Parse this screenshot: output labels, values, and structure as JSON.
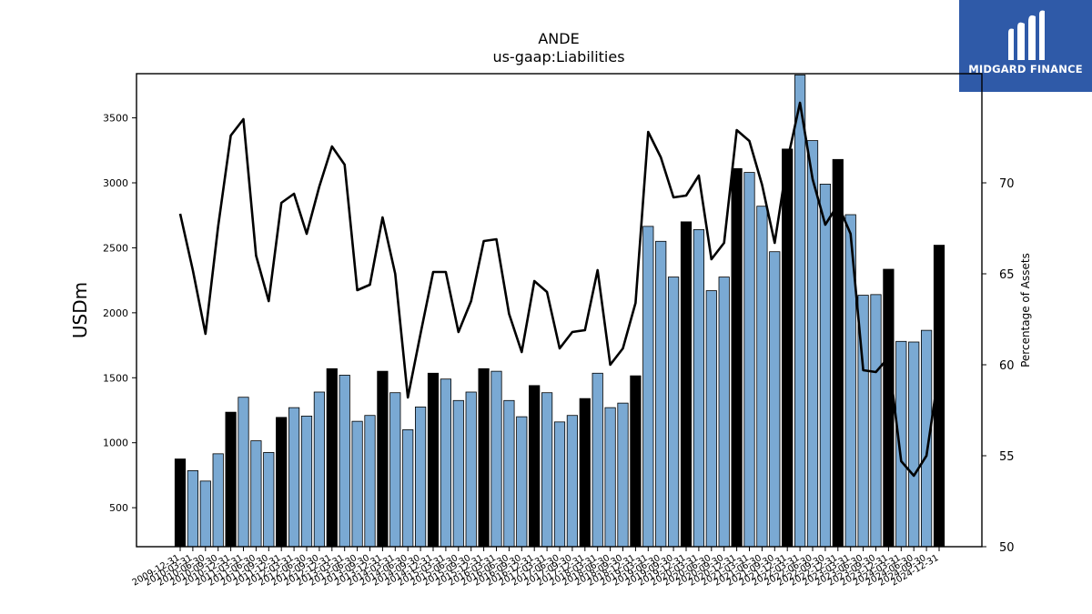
{
  "logo": {
    "text": "MIDGARD FINANCE"
  },
  "chart_data": {
    "type": "bar",
    "title": "ANDE",
    "subtitle": "us-gaap:Liabilities",
    "ylabel": "USDm",
    "y2label": "Percentage of Assets",
    "ylim": [
      200,
      3840
    ],
    "y2lim": [
      50,
      76
    ],
    "yticks": [
      500,
      1000,
      1500,
      2000,
      2500,
      3000,
      3500
    ],
    "y2ticks": [
      50,
      55,
      60,
      65,
      70
    ],
    "grid": false,
    "categories": [
      "2009-12-31",
      "2010-03-31",
      "2010-06-30",
      "2010-09-30",
      "2010-12-31",
      "2011-03-31",
      "2011-06-30",
      "2011-09-30",
      "2011-12-31",
      "2012-03-31",
      "2012-06-30",
      "2012-09-30",
      "2012-12-31",
      "2013-03-31",
      "2013-06-30",
      "2013-09-30",
      "2013-12-31",
      "2014-03-31",
      "2014-06-30",
      "2014-09-30",
      "2014-12-31",
      "2015-03-31",
      "2015-06-30",
      "2015-09-30",
      "2015-12-31",
      "2016-03-31",
      "2016-06-30",
      "2016-09-30",
      "2016-12-31",
      "2017-03-31",
      "2017-06-30",
      "2017-09-30",
      "2017-12-31",
      "2018-03-31",
      "2018-06-30",
      "2018-09-30",
      "2018-12-31",
      "2019-03-31",
      "2019-06-30",
      "2019-09-30",
      "2019-12-31",
      "2020-03-31",
      "2020-06-30",
      "2020-09-30",
      "2020-12-31",
      "2021-03-31",
      "2021-06-30",
      "2021-09-30",
      "2021-12-31",
      "2022-03-31",
      "2022-06-30",
      "2022-09-30",
      "2022-12-31",
      "2023-03-31",
      "2023-06-30",
      "2023-09-30",
      "2023-12-31",
      "2024-03-31",
      "2024-06-30",
      "2024-09-30",
      "2024-12-31"
    ],
    "series": [
      {
        "kind": "bar",
        "values": [
          875,
          785,
          705,
          915,
          1235,
          1350,
          1015,
          925,
          1195,
          1270,
          1205,
          1390,
          1570,
          1520,
          1165,
          1210,
          1550,
          1385,
          1100,
          1275,
          1535,
          1490,
          1325,
          1390,
          1570,
          1550,
          1325,
          1200,
          1440,
          1385,
          1160,
          1210,
          1340,
          1535,
          1270,
          1305,
          1515,
          2665,
          2550,
          2275,
          2700,
          2640,
          2170,
          2275,
          3110,
          3080,
          2820,
          2470,
          3260,
          3830,
          3325,
          2990,
          3180,
          2755,
          2135,
          2140,
          2335,
          1780,
          1775,
          1865,
          2520
        ],
        "year_end_color": "#000000",
        "quarter_color": "#7aa9d3"
      },
      {
        "kind": "line",
        "axis": "right",
        "color": "#000000",
        "values": [
          68.3,
          65.2,
          61.7,
          67.6,
          72.6,
          73.5,
          66.0,
          63.5,
          68.9,
          69.4,
          67.2,
          69.8,
          72.0,
          71.0,
          64.1,
          64.4,
          68.1,
          65.0,
          58.2,
          61.7,
          65.1,
          65.1,
          61.8,
          63.5,
          66.8,
          66.9,
          62.8,
          60.7,
          64.6,
          64.0,
          60.9,
          61.8,
          61.9,
          65.2,
          60.0,
          60.9,
          63.4,
          72.8,
          71.4,
          69.2,
          69.3,
          70.4,
          65.8,
          66.7,
          72.9,
          72.3,
          69.9,
          66.7,
          71.2,
          74.4,
          70.2,
          67.7,
          68.8,
          67.2,
          59.7,
          59.6,
          60.4,
          54.7,
          53.9,
          55.0,
          59.7
        ]
      }
    ]
  }
}
